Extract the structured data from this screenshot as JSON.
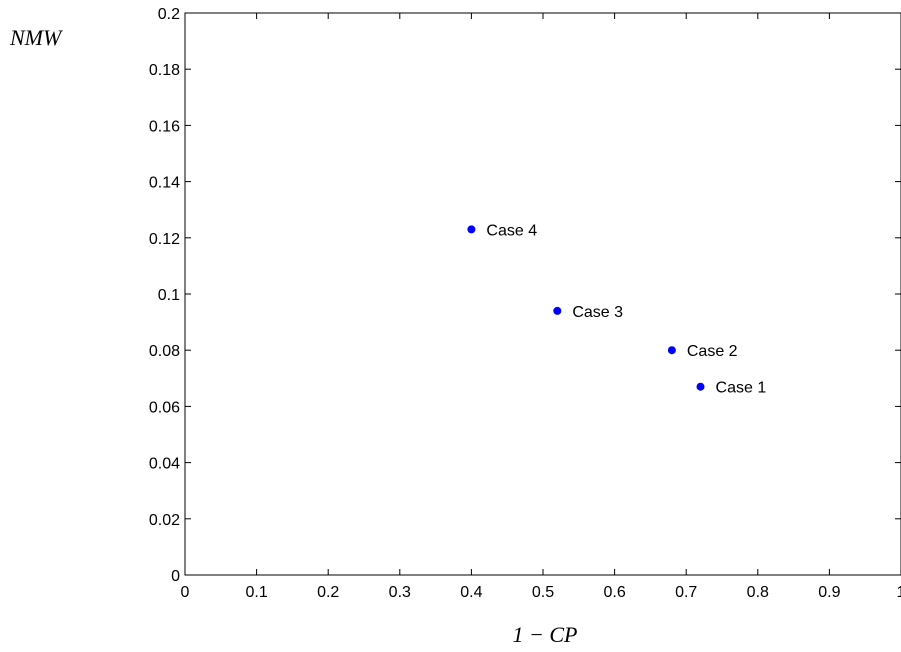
{
  "chart_data": {
    "type": "scatter",
    "title": "",
    "xlabel": "1 − CP",
    "ylabel": "NMW",
    "xlim": [
      0,
      1
    ],
    "ylim": [
      0,
      0.2
    ],
    "xticks": [
      0,
      0.1,
      0.2,
      0.3,
      0.4,
      0.5,
      0.6,
      0.7,
      0.8,
      0.9,
      1
    ],
    "xtick_labels": [
      "0",
      "0.1",
      "0.2",
      "0.3",
      "0.4",
      "0.5",
      "0.6",
      "0.7",
      "0.8",
      "0.9",
      "1"
    ],
    "yticks": [
      0,
      0.02,
      0.04,
      0.06,
      0.08,
      0.1,
      0.12,
      0.14,
      0.16,
      0.18,
      0.2
    ],
    "ytick_labels": [
      "0",
      "0.02",
      "0.04",
      "0.06",
      "0.08",
      "0.1",
      "0.12",
      "0.14",
      "0.16",
      "0.18",
      "0.2"
    ],
    "grid": false,
    "marker_color": "#0000ff",
    "points": [
      {
        "label": "Case 1",
        "x": 0.72,
        "y": 0.067
      },
      {
        "label": "Case 2",
        "x": 0.68,
        "y": 0.08
      },
      {
        "label": "Case 3",
        "x": 0.52,
        "y": 0.094
      },
      {
        "label": "Case 4",
        "x": 0.4,
        "y": 0.123
      }
    ]
  }
}
